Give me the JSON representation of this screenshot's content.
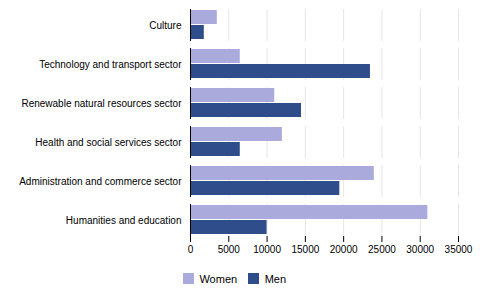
{
  "chart_data": {
    "type": "bar",
    "orientation": "horizontal",
    "categories": [
      "Humanities and education",
      "Administration and commerce sector",
      "Health and social services sector",
      "Renewable natural resources sector",
      "Technology and transport sector",
      "Culture"
    ],
    "series": [
      {
        "name": "Women",
        "color": "#aaaadd",
        "values": [
          31000,
          24000,
          12000,
          11000,
          6500,
          3500
        ]
      },
      {
        "name": "Men",
        "color": "#2e4d8a",
        "values": [
          10000,
          19500,
          6500,
          14500,
          23500,
          1800
        ]
      }
    ],
    "xlim": [
      0,
      35000
    ],
    "xticks": [
      0,
      5000,
      10000,
      15000,
      20000,
      25000,
      30000,
      35000
    ],
    "grid": true,
    "legend": "bottom"
  }
}
